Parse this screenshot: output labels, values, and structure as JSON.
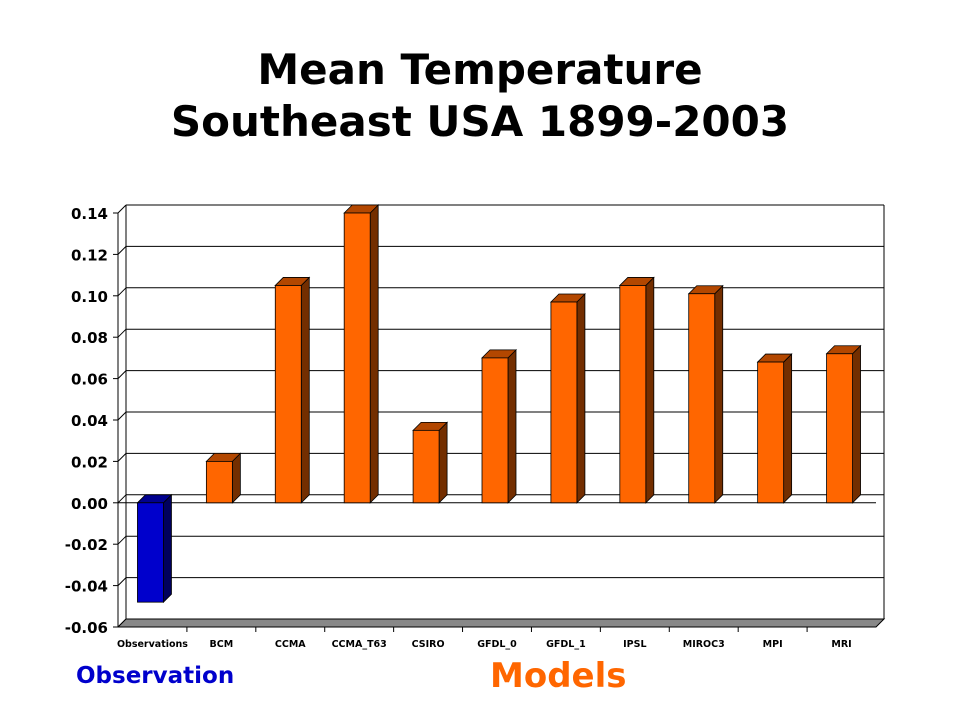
{
  "title": {
    "line1": "Mean Temperature",
    "line2": "Southeast USA 1899-2003"
  },
  "group_labels": {
    "observation": "Observation",
    "models": "Models"
  },
  "colors": {
    "observation_bar": "#0000cc",
    "model_bar": "#ff6600",
    "grid": "#000000"
  },
  "chart_data": {
    "type": "bar",
    "title": "",
    "xlabel": "",
    "ylabel": "",
    "categories": [
      "Observations",
      "BCM",
      "CCMA",
      "CCMA_T63",
      "CSIRO",
      "GFDL_0",
      "GFDL_1",
      "IPSL",
      "MIROC3",
      "MPI",
      "MRI"
    ],
    "values": [
      -0.048,
      0.02,
      0.105,
      0.14,
      0.035,
      0.07,
      0.097,
      0.105,
      0.101,
      0.068,
      0.072
    ],
    "ylim": [
      -0.06,
      0.14
    ],
    "yticks": [
      "0.14",
      "0.12",
      "0.10",
      "0.08",
      "0.06",
      "0.04",
      "0.02",
      "0.00",
      "-0.02",
      "-0.04",
      "-0.06"
    ],
    "grid": true,
    "legend": "none"
  }
}
